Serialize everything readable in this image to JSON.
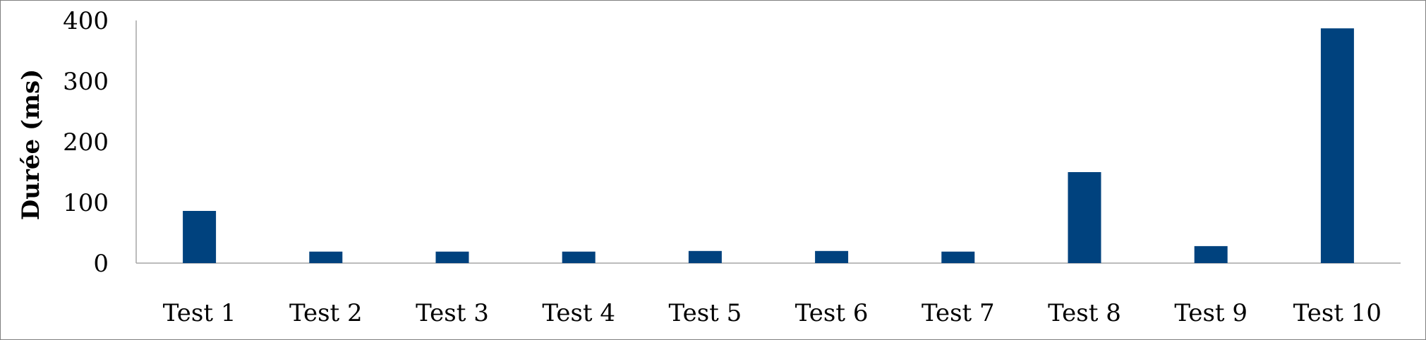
{
  "chart_data": {
    "type": "bar",
    "categories": [
      "Test 1",
      "Test 2",
      "Test 3",
      "Test 4",
      "Test 5",
      "Test 6",
      "Test 7",
      "Test 8",
      "Test 9",
      "Test 10"
    ],
    "values": [
      86,
      19,
      19,
      19,
      20,
      20,
      19,
      150,
      28,
      387
    ],
    "title": "",
    "xlabel": "",
    "ylabel": "Durée (ms)",
    "ylim": [
      0,
      400
    ],
    "yticks": [
      0,
      100,
      200,
      300,
      400
    ],
    "grid": false,
    "legend": "none",
    "bar_color": "#00427e",
    "axis_color": "#a6a6a6",
    "border_color": "#7f7f7f"
  }
}
